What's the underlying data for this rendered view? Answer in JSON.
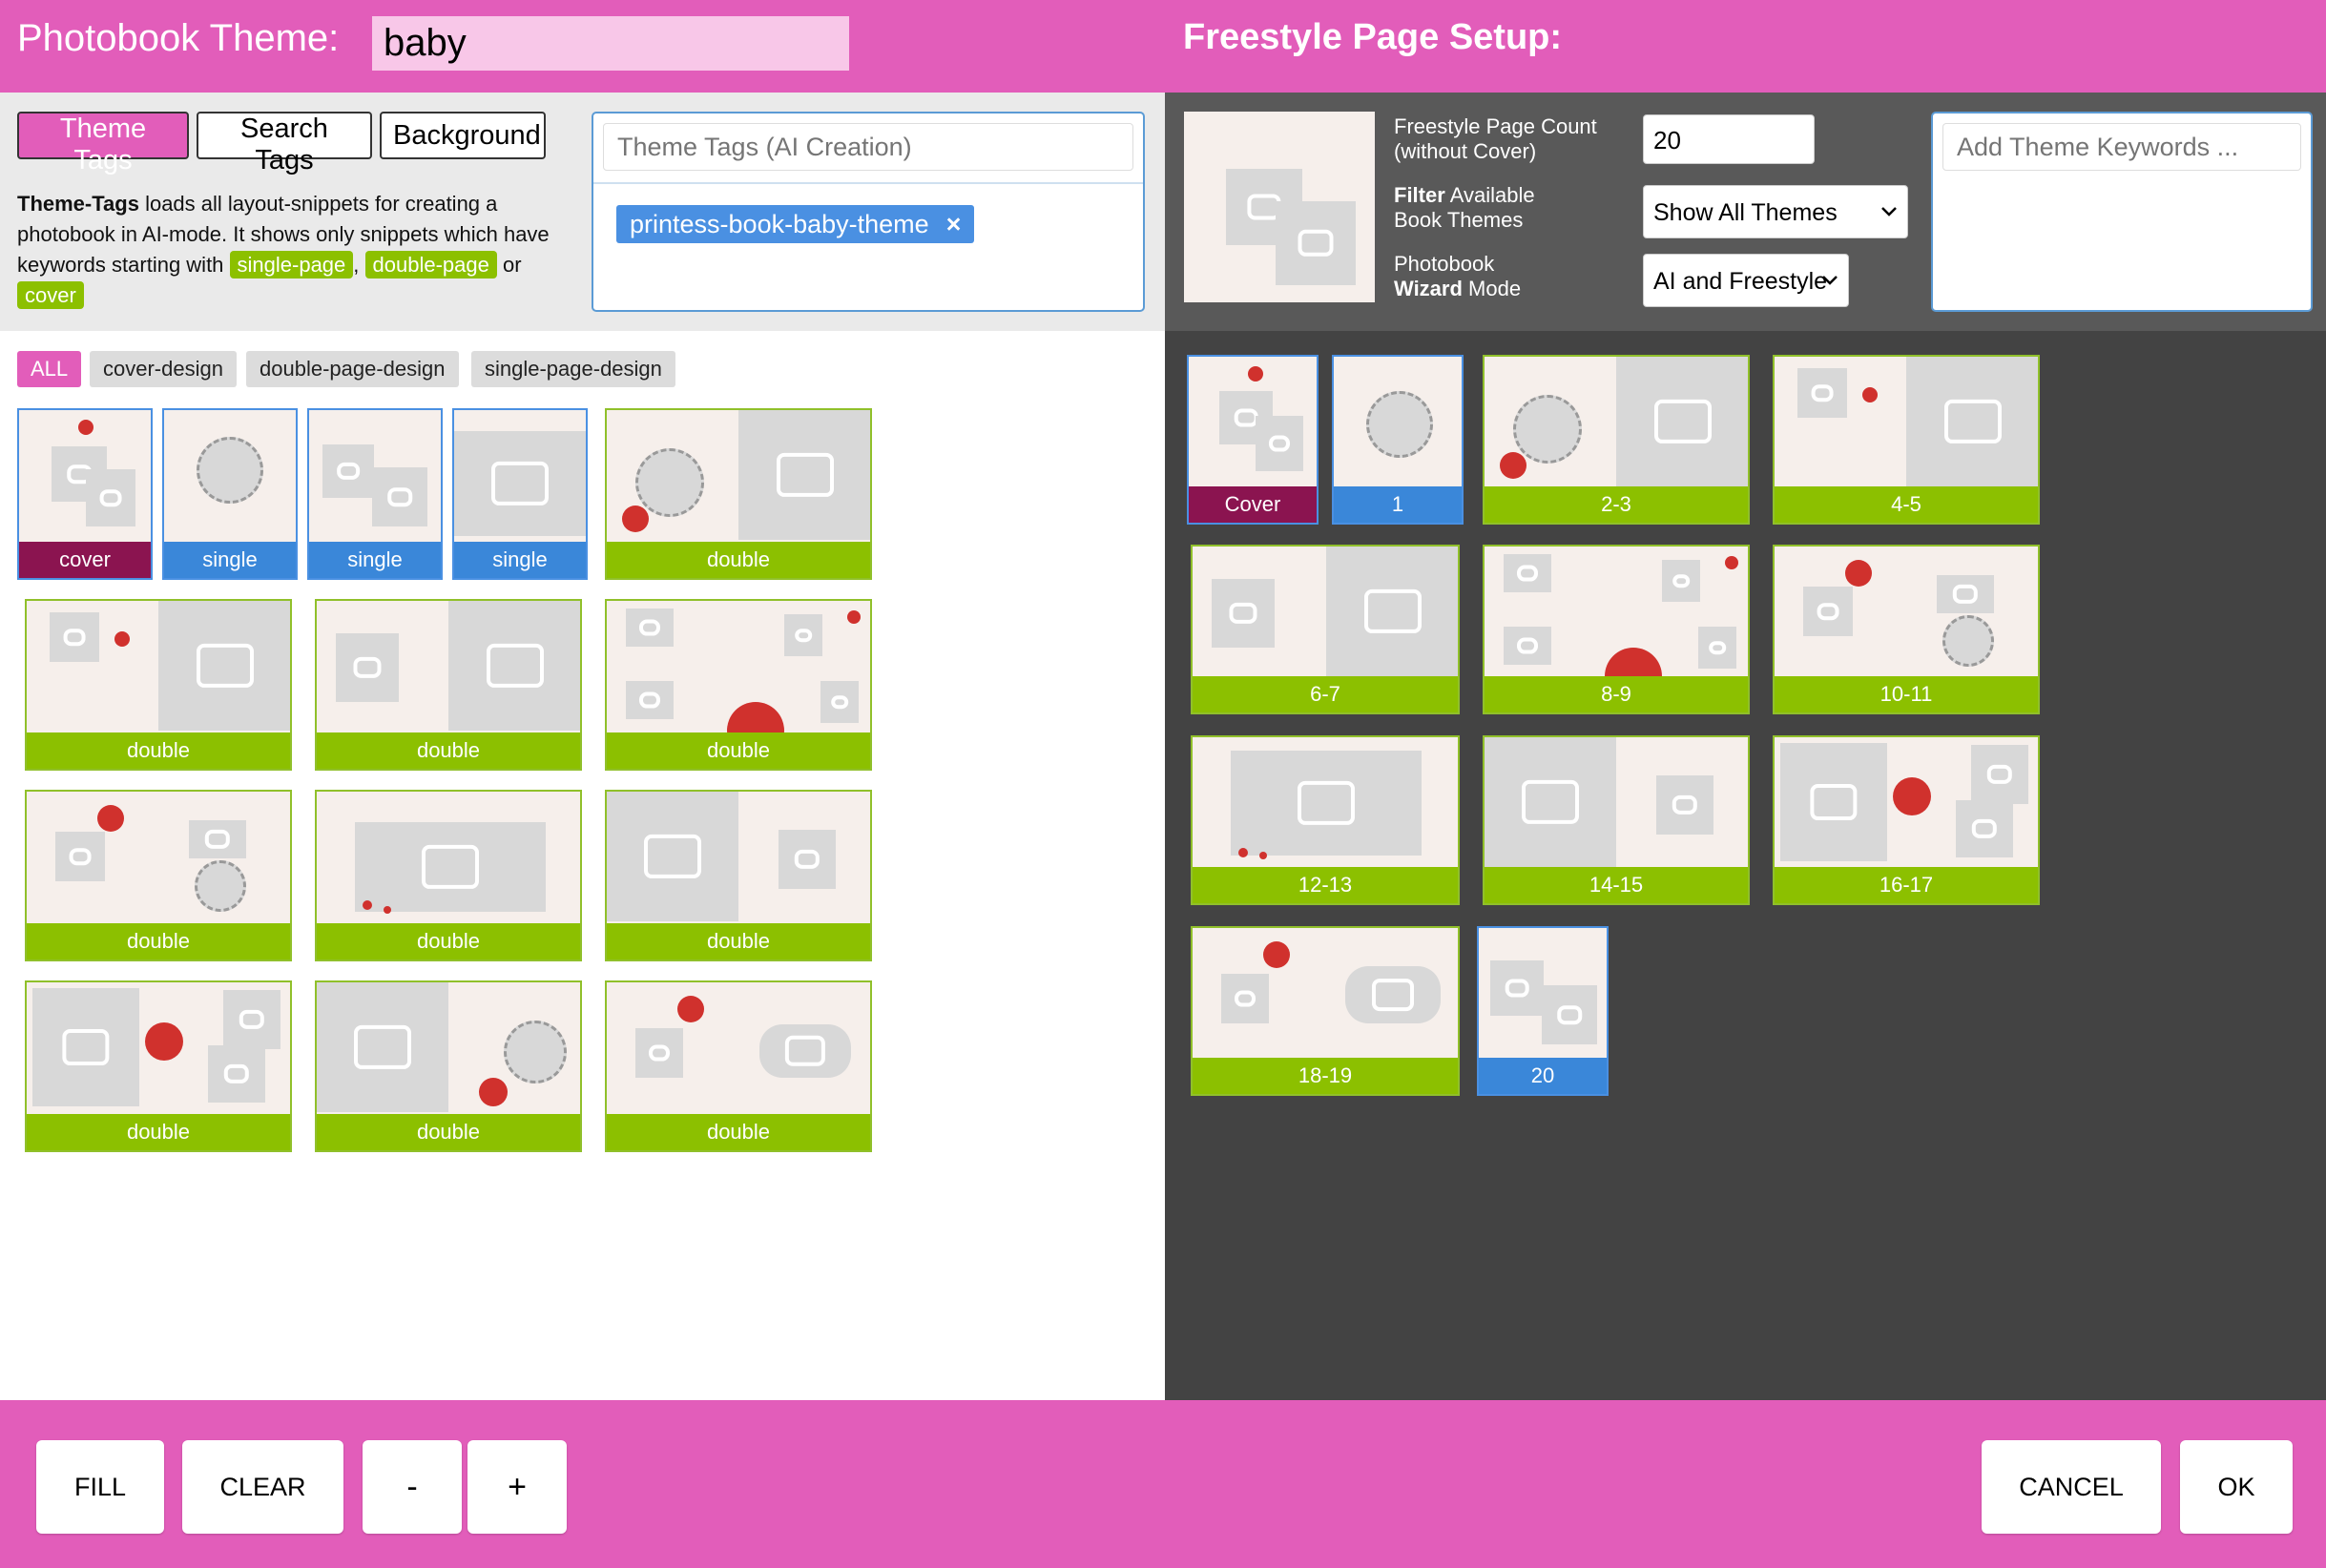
{
  "header": {
    "theme_label": "Photobook Theme:",
    "theme_value": "baby",
    "freestyle_title": "Freestyle Page Setup:"
  },
  "tabs": [
    "Theme Tags",
    "Search Tags",
    "Background"
  ],
  "description": {
    "bold": "Theme-Tags",
    "text1": " loads all layout-snippets for creating a photobook in AI-mode. It shows only snippets which have keywords starting with ",
    "kw1": "single-page",
    "comma": ", ",
    "kw2": "double-page",
    "or": " or ",
    "kw3": "cover"
  },
  "theme_tags": {
    "placeholder": "Theme Tags (AI Creation)",
    "chip": "printess-book-baby-theme",
    "chip_remove": "×"
  },
  "filters": [
    "ALL",
    "cover-design",
    "double-page-design",
    "single-page-design"
  ],
  "snippets": [
    "cover",
    "single",
    "single",
    "single",
    "double",
    "double",
    "double",
    "double",
    "double",
    "double",
    "double",
    "double",
    "double",
    "double"
  ],
  "right": {
    "page_count_label_1": "Freestyle Page Count",
    "page_count_label_2": "(without Cover)",
    "page_count_value": "20",
    "filter_label_bold": "Filter",
    "filter_label_rest": " Available",
    "filter_label_2": "Book Themes",
    "filter_value": "Show All Themes",
    "mode_label_1": "Photobook",
    "mode_label_bold": "Wizard",
    "mode_label_rest": " Mode",
    "mode_value": "AI and Freestyle",
    "keywords_placeholder": "Add Theme Keywords ..."
  },
  "pages": [
    "Cover",
    "1",
    "2-3",
    "4-5",
    "6-7",
    "8-9",
    "10-11",
    "12-13",
    "14-15",
    "16-17",
    "18-19",
    "20"
  ],
  "buttons": {
    "fill": "FILL",
    "clear": "CLEAR",
    "minus": "-",
    "plus": "+",
    "cancel": "CANCEL",
    "ok": "OK"
  },
  "colors": {
    "brand_pink": "#e25dba",
    "green": "#8cc000",
    "blue": "#3a87d9",
    "cover_maroon": "#8b1450",
    "dark_panel": "#434343"
  }
}
